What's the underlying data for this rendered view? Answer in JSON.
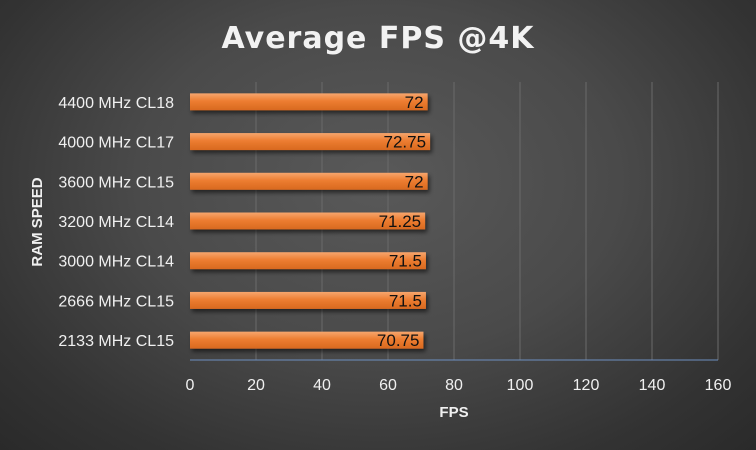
{
  "chart_data": {
    "type": "bar",
    "orientation": "horizontal",
    "title": "Average FPS @4K",
    "xlabel": "FPS",
    "ylabel": "RAM SPEED",
    "categories": [
      "4400 MHz CL18",
      "4000 MHz CL17",
      "3600 MHz CL15",
      "3200 MHz CL14",
      "3000 MHz CL14",
      "2666 MHz CL15",
      "2133 MHz CL15"
    ],
    "values": [
      72,
      72.75,
      72,
      71.25,
      71.5,
      71.5,
      70.75
    ],
    "data_labels": [
      "72",
      "72.75",
      "72",
      "71.25",
      "71.5",
      "71.5",
      "70.75"
    ],
    "xlim": [
      0,
      160
    ],
    "xticks": [
      0,
      20,
      40,
      60,
      80,
      100,
      120,
      140,
      160
    ],
    "grid": true,
    "legend": "none",
    "colors": {
      "bar": "#ed7d31",
      "bar_highlight": "#f4a06a",
      "axis": "#6d8fc0",
      "grid": "#6a6a6a",
      "text": "#f0f0f0",
      "data_label": "#111111"
    }
  }
}
